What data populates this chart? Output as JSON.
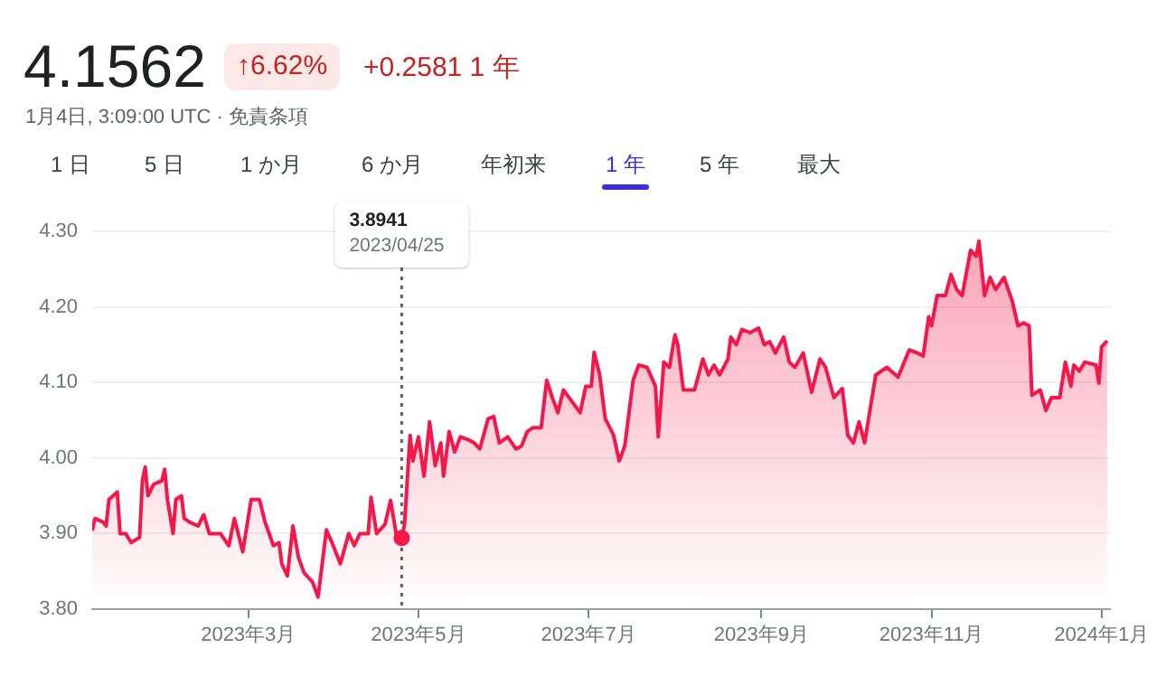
{
  "chart_data": {
    "type": "area",
    "title": "4.1562",
    "subtitle": "1月4日, 3:09:00 UTC · 免責条項",
    "annotations": [
      "↑6.62%",
      "+0.2581",
      "1 年",
      "1 日",
      "5 日",
      "1 か月",
      "6 か月",
      "年初来",
      "1 年",
      "5 年",
      "最大",
      "3.8941\n2023/04/25"
    ],
    "x": [
      "2023-01-04",
      "2023-01-05",
      "2023-01-08",
      "2023-01-09",
      "2023-01-10",
      "2023-01-13",
      "2023-01-14",
      "2023-01-16",
      "2023-01-18",
      "2023-01-21",
      "2023-01-22",
      "2023-01-23",
      "2023-01-24",
      "2023-01-26",
      "2023-01-29",
      "2023-01-30",
      "2023-01-31",
      "2023-02-02",
      "2023-02-03",
      "2023-02-05",
      "2023-02-06",
      "2023-02-08",
      "2023-02-11",
      "2023-02-13",
      "2023-02-15",
      "2023-02-19",
      "2023-02-22",
      "2023-02-24",
      "2023-02-27",
      "2023-03-02",
      "2023-03-05",
      "2023-03-07",
      "2023-03-10",
      "2023-03-12",
      "2023-03-13",
      "2023-03-15",
      "2023-03-17",
      "2023-03-19",
      "2023-03-21",
      "2023-03-24",
      "2023-03-26",
      "2023-03-29",
      "2023-03-31",
      "2023-04-03",
      "2023-04-06",
      "2023-04-08",
      "2023-04-10",
      "2023-04-13",
      "2023-04-14",
      "2023-04-16",
      "2023-04-19",
      "2023-04-21",
      "2023-04-23",
      "2023-04-25",
      "2023-04-26",
      "2023-04-28",
      "2023-04-29",
      "2023-05-01",
      "2023-05-03",
      "2023-05-05",
      "2023-05-07",
      "2023-05-09",
      "2023-05-10",
      "2023-05-12",
      "2023-05-14",
      "2023-05-16",
      "2023-05-19",
      "2023-05-21",
      "2023-05-23",
      "2023-05-26",
      "2023-05-28",
      "2023-05-30",
      "2023-06-02",
      "2023-06-05",
      "2023-06-07",
      "2023-06-09",
      "2023-06-11",
      "2023-06-14",
      "2023-06-16",
      "2023-06-18",
      "2023-06-20",
      "2023-06-22",
      "2023-06-24",
      "2023-06-28",
      "2023-06-30",
      "2023-07-02",
      "2023-07-03",
      "2023-07-05",
      "2023-07-07",
      "2023-07-10",
      "2023-07-12",
      "2023-07-14",
      "2023-07-17",
      "2023-07-19",
      "2023-07-22",
      "2023-07-25",
      "2023-07-26",
      "2023-07-28",
      "2023-07-30",
      "2023-08-01",
      "2023-08-02",
      "2023-08-04",
      "2023-08-08",
      "2023-08-11",
      "2023-08-13",
      "2023-08-15",
      "2023-08-17",
      "2023-08-20",
      "2023-08-21",
      "2023-08-23",
      "2023-08-25",
      "2023-08-28",
      "2023-08-31",
      "2023-09-02",
      "2023-09-04",
      "2023-09-06",
      "2023-09-09",
      "2023-09-11",
      "2023-09-13",
      "2023-09-16",
      "2023-09-19",
      "2023-09-22",
      "2023-09-24",
      "2023-09-27",
      "2023-09-30",
      "2023-10-02",
      "2023-10-04",
      "2023-10-06",
      "2023-10-08",
      "2023-10-12",
      "2023-10-16",
      "2023-10-20",
      "2023-10-24",
      "2023-10-27",
      "2023-10-29",
      "2023-10-31",
      "2023-11-01",
      "2023-11-03",
      "2023-11-06",
      "2023-11-08",
      "2023-11-10",
      "2023-11-12",
      "2023-11-15",
      "2023-11-17",
      "2023-11-18",
      "2023-11-20",
      "2023-11-22",
      "2023-11-24",
      "2023-11-27",
      "2023-11-30",
      "2023-12-02",
      "2023-12-04",
      "2023-12-06",
      "2023-12-07",
      "2023-12-10",
      "2023-12-12",
      "2023-12-14",
      "2023-12-17",
      "2023-12-19",
      "2023-12-21",
      "2023-12-22",
      "2023-12-24",
      "2023-12-26",
      "2023-12-30",
      "2023-12-31",
      "2024-01-01",
      "2024-01-03"
    ],
    "series": [
      {
        "color": "#f5164a",
        "values": [
          3.904,
          3.92,
          3.915,
          3.91,
          3.945,
          3.955,
          3.9,
          3.9,
          3.888,
          3.895,
          3.97,
          3.988,
          3.95,
          3.965,
          3.97,
          3.985,
          3.945,
          3.9,
          3.945,
          3.95,
          3.92,
          3.915,
          3.91,
          3.925,
          3.9,
          3.9,
          3.884,
          3.92,
          3.876,
          3.945,
          3.945,
          3.915,
          3.884,
          3.888,
          3.86,
          3.844,
          3.91,
          3.868,
          3.848,
          3.836,
          3.816,
          3.905,
          3.888,
          3.86,
          3.9,
          3.884,
          3.9,
          3.9,
          3.948,
          3.9,
          3.912,
          3.944,
          3.9,
          3.8941,
          3.912,
          4.03,
          3.996,
          4.028,
          3.976,
          4.048,
          3.99,
          4.02,
          3.976,
          4.035,
          4.008,
          4.028,
          4.024,
          4.02,
          4.012,
          4.052,
          4.055,
          4.02,
          4.028,
          4.012,
          4.016,
          4.035,
          4.04,
          4.04,
          4.103,
          4.08,
          4.06,
          4.09,
          4.08,
          4.06,
          4.095,
          4.095,
          4.14,
          4.11,
          4.052,
          4.03,
          3.996,
          4.016,
          4.103,
          4.123,
          4.12,
          4.095,
          4.028,
          4.127,
          4.12,
          4.163,
          4.15,
          4.09,
          4.09,
          4.131,
          4.11,
          4.123,
          4.11,
          4.131,
          4.16,
          4.15,
          4.17,
          4.166,
          4.172,
          4.15,
          4.154,
          4.139,
          4.16,
          4.127,
          4.12,
          4.139,
          4.087,
          4.131,
          4.12,
          4.08,
          4.092,
          4.03,
          4.02,
          4.048,
          4.02,
          4.11,
          4.12,
          4.107,
          4.143,
          4.139,
          4.135,
          4.187,
          4.175,
          4.215,
          4.215,
          4.243,
          4.223,
          4.215,
          4.275,
          4.267,
          4.287,
          4.215,
          4.239,
          4.223,
          4.239,
          4.207,
          4.175,
          4.179,
          4.175,
          4.083,
          4.09,
          4.063,
          4.08,
          4.08,
          4.127,
          4.095,
          4.123,
          4.115,
          4.127,
          4.123,
          4.099,
          4.147,
          4.155
        ]
      }
    ],
    "xlim": [
      "2023-01-04",
      "2024-01-04"
    ],
    "xticks": [
      {
        "value": "2023-03-01",
        "label": "2023年3月"
      },
      {
        "value": "2023-05-01",
        "label": "2023年5月"
      },
      {
        "value": "2023-07-01",
        "label": "2023年7月"
      },
      {
        "value": "2023-09-01",
        "label": "2023年9月"
      },
      {
        "value": "2023-11-01",
        "label": "2023年11月"
      },
      {
        "value": "2024-01-01",
        "label": "2024年1月"
      }
    ],
    "ylim": [
      3.8,
      4.3
    ],
    "yticks": [
      {
        "value": 3.8,
        "label": "3.80"
      },
      {
        "value": 3.9,
        "label": "3.90"
      },
      {
        "value": 4.0,
        "label": "4.00"
      },
      {
        "value": 4.1,
        "label": "4.10"
      },
      {
        "value": 4.2,
        "label": "4.20"
      },
      {
        "value": 4.3,
        "label": "4.30"
      }
    ],
    "ref_lines": [
      {
        "axis": "x",
        "value": "2023-04-25",
        "line_style": "dotted",
        "color": "#5f6368"
      }
    ],
    "grid": "y",
    "legend": false,
    "marker": "none",
    "line_style": "solid"
  }
}
